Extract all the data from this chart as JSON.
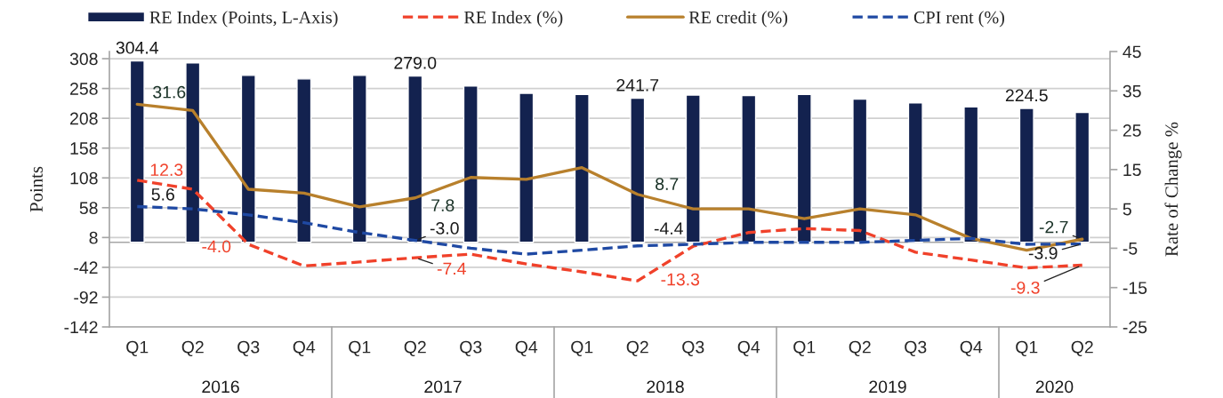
{
  "chart_data": {
    "type": "bar",
    "ylabel": "Points",
    "y2label": "Rate of Change %",
    "categories": [
      "Q1",
      "Q2",
      "Q3",
      "Q4",
      "Q1",
      "Q2",
      "Q3",
      "Q4",
      "Q1",
      "Q2",
      "Q3",
      "Q4",
      "Q1",
      "Q2",
      "Q3",
      "Q4",
      "Q1",
      "Q2"
    ],
    "annotations": [
      "2016",
      "2017",
      "2018",
      "2019",
      "2020"
    ],
    "series": [
      {
        "name": "RE Index (Points, L-Axis)",
        "type": "bar",
        "color": "#13224f",
        "values": [
          304.4,
          301,
          280,
          274,
          280,
          279.0,
          262,
          250,
          248,
          241.7,
          247,
          246,
          248,
          240,
          234,
          227,
          224.5,
          218
        ],
        "value_labels": [
          "304.4",
          null,
          null,
          null,
          null,
          "279.0",
          null,
          null,
          null,
          "241.7",
          null,
          null,
          null,
          null,
          null,
          null,
          "224.5",
          null
        ]
      },
      {
        "name": "RE Index (%)",
        "type": "line",
        "axis": "y2",
        "color": "#f0412a",
        "line_style": "dashed",
        "values": [
          12.3,
          10,
          -4.0,
          -9.5,
          -8.5,
          -7.4,
          -6.5,
          -9,
          -11,
          -13.3,
          -4.5,
          -1,
          0,
          -0.5,
          -6,
          -8,
          -10,
          -9.3
        ],
        "value_labels": [
          "12.3",
          null,
          "-4.0",
          null,
          null,
          "-7.4",
          null,
          null,
          null,
          "-13.3",
          null,
          null,
          null,
          null,
          null,
          null,
          null,
          "-9.3"
        ]
      },
      {
        "name": "RE credit (%)",
        "type": "line",
        "axis": "y2",
        "color": "#b8802c",
        "line_style": "solid",
        "values": [
          31.6,
          30,
          10,
          9,
          5.5,
          7.8,
          13,
          12.5,
          15.5,
          8.7,
          5,
          5,
          2.5,
          5,
          3.5,
          -2.5,
          -5.5,
          -2.7
        ],
        "value_labels": [
          "31.6",
          null,
          null,
          null,
          null,
          "7.8",
          null,
          null,
          null,
          "8.7",
          null,
          null,
          null,
          null,
          null,
          null,
          null,
          "-2.7"
        ]
      },
      {
        "name": "CPI rent (%)",
        "type": "line",
        "axis": "y2",
        "color": "#1f49a3",
        "line_style": "dashed",
        "values": [
          5.6,
          5,
          3.5,
          1.5,
          -1,
          -3.0,
          -5,
          -6.5,
          -5.5,
          -4.4,
          -4,
          -3.5,
          -3.5,
          -3.5,
          -3,
          -2.5,
          -4,
          -3.9
        ],
        "value_labels": [
          "5.6",
          null,
          null,
          null,
          null,
          "-3.0",
          null,
          null,
          null,
          "-4.4",
          null,
          null,
          null,
          null,
          null,
          null,
          null,
          "-3.9"
        ]
      }
    ],
    "ylim": [
      -142,
      320
    ],
    "yticks": [
      -142,
      -92,
      -42,
      8,
      58,
      108,
      158,
      208,
      258,
      308
    ],
    "y2lim": [
      -25,
      45
    ],
    "y2ticks": [
      -25,
      -15,
      -5,
      5,
      15,
      25,
      35,
      45
    ],
    "ref_lines": [
      {
        "axis": "y",
        "value": 0,
        "color": "#a6a6a6"
      }
    ],
    "grid": "y",
    "legend": "top"
  }
}
